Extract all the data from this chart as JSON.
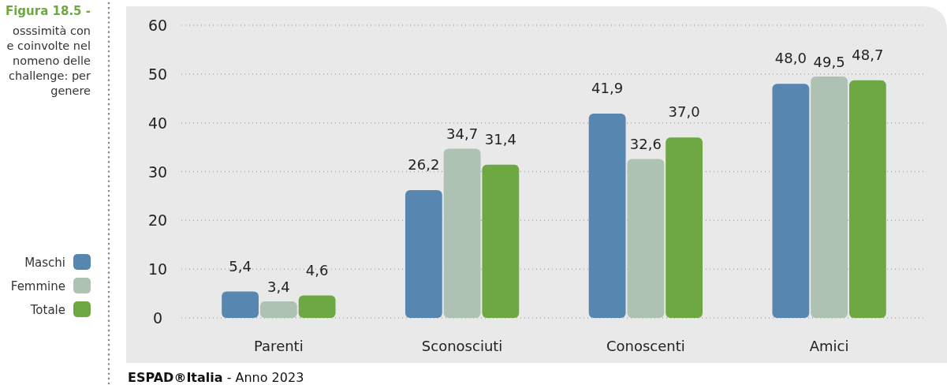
{
  "chart_data": {
    "type": "bar",
    "title": "Figura 18.5 -",
    "subtitle": "osssimità con\ne coinvolte nel\nnomeno delle\nchallenge: per\ngenere",
    "categories": [
      "Parenti",
      "Sconosciuti",
      "Conoscenti",
      "Amici"
    ],
    "series": [
      {
        "name": "Maschi",
        "color": "#5787b1",
        "values": [
          5.4,
          26.2,
          41.9,
          48.0
        ],
        "value_labels": [
          "5,4",
          "26,2",
          "41,9",
          "48,0"
        ]
      },
      {
        "name": "Femmine",
        "color": "#adc2b2",
        "values": [
          3.4,
          34.7,
          32.6,
          49.5
        ],
        "value_labels": [
          "3,4",
          "34,7",
          "32,6",
          "49,5"
        ]
      },
      {
        "name": "Totale",
        "color": "#6da842",
        "values": [
          4.6,
          31.4,
          37.0,
          48.7
        ],
        "value_labels": [
          "4,6",
          "31,4",
          "37,0",
          "48,7"
        ]
      }
    ],
    "ylim": [
      0,
      60
    ],
    "yticks": [
      0,
      10,
      20,
      30,
      40,
      50,
      60
    ],
    "grid": "y",
    "legend": "left",
    "annotations": [
      "ESPAD®Italia - Anno 2023"
    ]
  }
}
